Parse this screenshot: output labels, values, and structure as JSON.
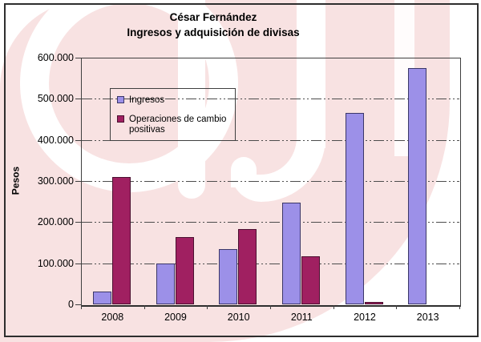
{
  "watermark": {
    "logo_text": "cij",
    "pink_color": "#f8e2e2",
    "white_color": "#ffffff"
  },
  "chart_data": {
    "type": "bar",
    "title": "César Fernández",
    "subtitle": "Ingresos y adquisición de divisas",
    "ylabel": "Pesos",
    "categories": [
      "2008",
      "2009",
      "2010",
      "2011",
      "2012",
      "2013"
    ],
    "series": [
      {
        "name": "Ingresos",
        "color": "#9c90e8",
        "border_color": "#3b3768",
        "values": [
          32000,
          100000,
          134000,
          247000,
          465000,
          575000
        ]
      },
      {
        "name": "Operaciones de cambio positivas",
        "color": "#a02061",
        "border_color": "#4b1030",
        "values": [
          310000,
          164000,
          183000,
          117000,
          6000,
          0
        ]
      }
    ],
    "ylim": [
      0,
      600000
    ],
    "ytick_step": 100000,
    "ytick_labels_top_down": [
      "600.000",
      "500.000",
      "400.000",
      "300.000",
      "200.000",
      "100.000",
      "0"
    ],
    "grid": true,
    "legend": {
      "position": "upper-left-inside",
      "items": [
        "Ingresos",
        "Operaciones de cambio positivas"
      ]
    }
  }
}
